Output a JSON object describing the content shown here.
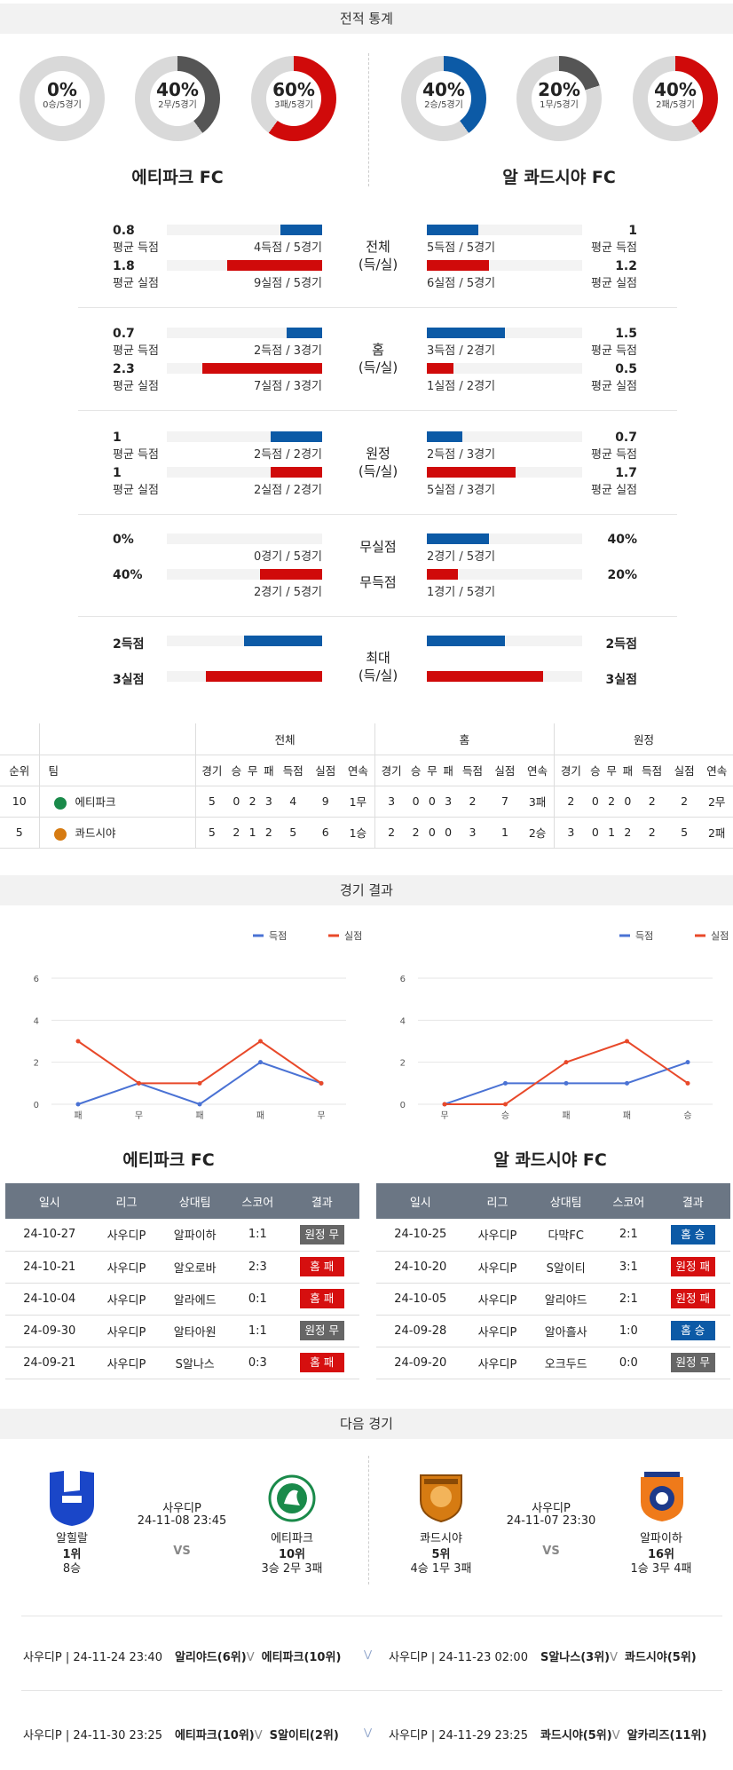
{
  "stats_title": "전적 통계",
  "left_team": {
    "name": "에티파크 FC",
    "donuts": [
      {
        "pct": "0%",
        "sub": "0승/5경기",
        "value": 0,
        "color": "#555555"
      },
      {
        "pct": "40%",
        "sub": "2무/5경기",
        "value": 40,
        "color": "#555555"
      },
      {
        "pct": "60%",
        "sub": "3패/5경기",
        "value": 60,
        "color": "#d00a0a"
      }
    ]
  },
  "right_team": {
    "name": "알 콰드시야 FC",
    "donuts": [
      {
        "pct": "40%",
        "sub": "2승/5경기",
        "value": 40,
        "color": "#0c5aa6"
      },
      {
        "pct": "20%",
        "sub": "1무/5경기",
        "value": 20,
        "color": "#555555"
      },
      {
        "pct": "40%",
        "sub": "2패/5경기",
        "value": 40,
        "color": "#d00a0a"
      }
    ]
  },
  "comparisons": [
    {
      "category": "전체\n(득/실)",
      "rows": [
        {
          "left": {
            "value": "0.8",
            "label": "평균 득점",
            "detail": "4득점 / 5경기",
            "ratio": 0.27,
            "color": "blue"
          },
          "right": {
            "value": "1",
            "label": "평균 득점",
            "detail": "5득점 / 5경기",
            "ratio": 0.33,
            "color": "blue"
          }
        },
        {
          "left": {
            "value": "1.8",
            "label": "평균 실점",
            "detail": "9실점 / 5경기",
            "ratio": 0.61,
            "color": "red"
          },
          "right": {
            "value": "1.2",
            "label": "평균 실점",
            "detail": "6실점 / 5경기",
            "ratio": 0.4,
            "color": "red"
          }
        }
      ]
    },
    {
      "category": "홈\n(득/실)",
      "rows": [
        {
          "left": {
            "value": "0.7",
            "label": "평균 득점",
            "detail": "2득점 / 3경기",
            "ratio": 0.23,
            "color": "blue"
          },
          "right": {
            "value": "1.5",
            "label": "평균 득점",
            "detail": "3득점 / 2경기",
            "ratio": 0.5,
            "color": "blue"
          }
        },
        {
          "left": {
            "value": "2.3",
            "label": "평균 실점",
            "detail": "7실점 / 3경기",
            "ratio": 0.77,
            "color": "red"
          },
          "right": {
            "value": "0.5",
            "label": "평균 실점",
            "detail": "1실점 / 2경기",
            "ratio": 0.17,
            "color": "red"
          }
        }
      ]
    },
    {
      "category": "원정\n(득/실)",
      "rows": [
        {
          "left": {
            "value": "1",
            "label": "평균 득점",
            "detail": "2득점 / 2경기",
            "ratio": 0.33,
            "color": "blue"
          },
          "right": {
            "value": "0.7",
            "label": "평균 득점",
            "detail": "2득점 / 3경기",
            "ratio": 0.23,
            "color": "blue"
          }
        },
        {
          "left": {
            "value": "1",
            "label": "평균 실점",
            "detail": "2실점 / 2경기",
            "ratio": 0.33,
            "color": "red"
          },
          "right": {
            "value": "1.7",
            "label": "평균 실점",
            "detail": "5실점 / 3경기",
            "ratio": 0.57,
            "color": "red"
          }
        }
      ]
    },
    {
      "category": "",
      "rows": [
        {
          "cat": "무실점",
          "left": {
            "value": "0%",
            "label": "",
            "detail": "0경기 / 5경기",
            "ratio": 0,
            "color": "blue"
          },
          "right": {
            "value": "40%",
            "label": "",
            "detail": "2경기 / 5경기",
            "ratio": 0.4,
            "color": "blue"
          }
        },
        {
          "cat": "무득점",
          "left": {
            "value": "40%",
            "label": "",
            "detail": "2경기 / 5경기",
            "ratio": 0.4,
            "color": "red"
          },
          "right": {
            "value": "20%",
            "label": "",
            "detail": "1경기 / 5경기",
            "ratio": 0.2,
            "color": "red"
          }
        }
      ]
    },
    {
      "category": "최대\n(득/실)",
      "rows": [
        {
          "left": {
            "value": "2득점",
            "label": "",
            "detail": "",
            "ratio": 0.5,
            "color": "blue"
          },
          "right": {
            "value": "2득점",
            "label": "",
            "detail": "",
            "ratio": 0.5,
            "color": "blue"
          }
        },
        {
          "left": {
            "value": "3실점",
            "label": "",
            "detail": "",
            "ratio": 0.75,
            "color": "red"
          },
          "right": {
            "value": "3실점",
            "label": "",
            "detail": "",
            "ratio": 0.75,
            "color": "red"
          }
        }
      ]
    }
  ],
  "standings": {
    "groups": [
      "전체",
      "홈",
      "원정"
    ],
    "rank_header": "순위",
    "team_header": "팀",
    "cols": [
      "경기",
      "승",
      "무",
      "패",
      "득점",
      "실점",
      "연속"
    ],
    "rows": [
      {
        "rank": "10",
        "team": "에티파크",
        "logo_color": "#1a8a4a",
        "total": [
          "5",
          "0",
          "2",
          "3",
          "4",
          "9",
          "1무"
        ],
        "home": [
          "3",
          "0",
          "0",
          "3",
          "2",
          "7",
          "3패"
        ],
        "away": [
          "2",
          "0",
          "2",
          "0",
          "2",
          "2",
          "2무"
        ]
      },
      {
        "rank": "5",
        "team": "콰드시야",
        "logo_color": "#d67b12",
        "total": [
          "5",
          "2",
          "1",
          "2",
          "5",
          "6",
          "1승"
        ],
        "home": [
          "2",
          "2",
          "0",
          "0",
          "3",
          "1",
          "2승"
        ],
        "away": [
          "3",
          "0",
          "1",
          "2",
          "2",
          "5",
          "2패"
        ]
      }
    ]
  },
  "results_title": "경기 결과",
  "chart_data": [
    {
      "type": "line",
      "title": "에티파크 FC",
      "categories": [
        "패",
        "무",
        "패",
        "패",
        "무"
      ],
      "series": [
        {
          "name": "득점",
          "color": "#4a72d4",
          "values": [
            0,
            1,
            0,
            2,
            1
          ]
        },
        {
          "name": "실점",
          "color": "#e8492a",
          "values": [
            3,
            1,
            1,
            3,
            1
          ]
        }
      ],
      "yticks": [
        0,
        2,
        4,
        6
      ],
      "ylim": [
        0,
        6
      ],
      "legend": "top-right"
    },
    {
      "type": "line",
      "title": "알 콰드시야 FC",
      "categories": [
        "무",
        "승",
        "패",
        "패",
        "승"
      ],
      "series": [
        {
          "name": "득점",
          "color": "#4a72d4",
          "values": [
            0,
            1,
            1,
            1,
            2
          ]
        },
        {
          "name": "실점",
          "color": "#e8492a",
          "values": [
            0,
            0,
            2,
            3,
            1
          ]
        }
      ],
      "yticks": [
        0,
        2,
        4,
        6
      ],
      "ylim": [
        0,
        6
      ],
      "legend": "top-right"
    }
  ],
  "results_headers": [
    "일시",
    "리그",
    "상대팀",
    "스코어",
    "결과"
  ],
  "left_results": [
    {
      "date": "24-10-27",
      "league": "사우디P",
      "opp": "알파이하",
      "score": "1:1",
      "result": "원정 무",
      "type": "gray"
    },
    {
      "date": "24-10-21",
      "league": "사우디P",
      "opp": "알오로바",
      "score": "2:3",
      "result": "홈 패",
      "type": "red"
    },
    {
      "date": "24-10-04",
      "league": "사우디P",
      "opp": "알라에드",
      "score": "0:1",
      "result": "홈 패",
      "type": "red"
    },
    {
      "date": "24-09-30",
      "league": "사우디P",
      "opp": "알타아원",
      "score": "1:1",
      "result": "원정 무",
      "type": "gray"
    },
    {
      "date": "24-09-21",
      "league": "사우디P",
      "opp": "S알나스",
      "score": "0:3",
      "result": "홈 패",
      "type": "red"
    }
  ],
  "right_results": [
    {
      "date": "24-10-25",
      "league": "사우디P",
      "opp": "다막FC",
      "score": "2:1",
      "result": "홈 승",
      "type": "blue"
    },
    {
      "date": "24-10-20",
      "league": "사우디P",
      "opp": "S알이티",
      "score": "3:1",
      "result": "원정 패",
      "type": "red"
    },
    {
      "date": "24-10-05",
      "league": "사우디P",
      "opp": "알리야드",
      "score": "2:1",
      "result": "원정 패",
      "type": "red"
    },
    {
      "date": "24-09-28",
      "league": "사우디P",
      "opp": "알아흘사",
      "score": "1:0",
      "result": "홈 승",
      "type": "blue"
    },
    {
      "date": "24-09-20",
      "league": "사우디P",
      "opp": "오크두드",
      "score": "0:0",
      "result": "원정 무",
      "type": "gray"
    }
  ],
  "next_title": "다음 경기",
  "next_left": {
    "league": "사우디P",
    "datetime": "24-11-08 23:45",
    "vs": "VS",
    "home": {
      "name": "알힐랄",
      "rank": "1위",
      "record": "8승"
    },
    "away": {
      "name": "에티파크",
      "rank": "10위",
      "record": "3승 2무 3패"
    }
  },
  "next_right": {
    "league": "사우디P",
    "datetime": "24-11-07 23:30",
    "vs": "VS",
    "home": {
      "name": "콰드시야",
      "rank": "5위",
      "record": "4승 1무 3패"
    },
    "away": {
      "name": "알파이하",
      "rank": "16위",
      "record": "1승 3무 4패"
    }
  },
  "future": [
    {
      "left": {
        "info": "사우디P | 24-11-24 23:40",
        "t1": "알리야드(6위)",
        "v": "V",
        "t2": "에티파크(10위)"
      },
      "right": {
        "info": "사우디P | 24-11-23 02:00",
        "t1": "S알나스(3위)",
        "v": "V",
        "t2": "콰드시야(5위)"
      }
    },
    {
      "left": {
        "info": "사우디P | 24-11-30 23:25",
        "t1": "에티파크(10위)",
        "v": "V",
        "t2": "S알이티(2위)"
      },
      "right": {
        "info": "사우디P | 24-11-29 23:25",
        "t1": "콰드시야(5위)",
        "v": "V",
        "t2": "알카리즈(11위)"
      }
    }
  ]
}
